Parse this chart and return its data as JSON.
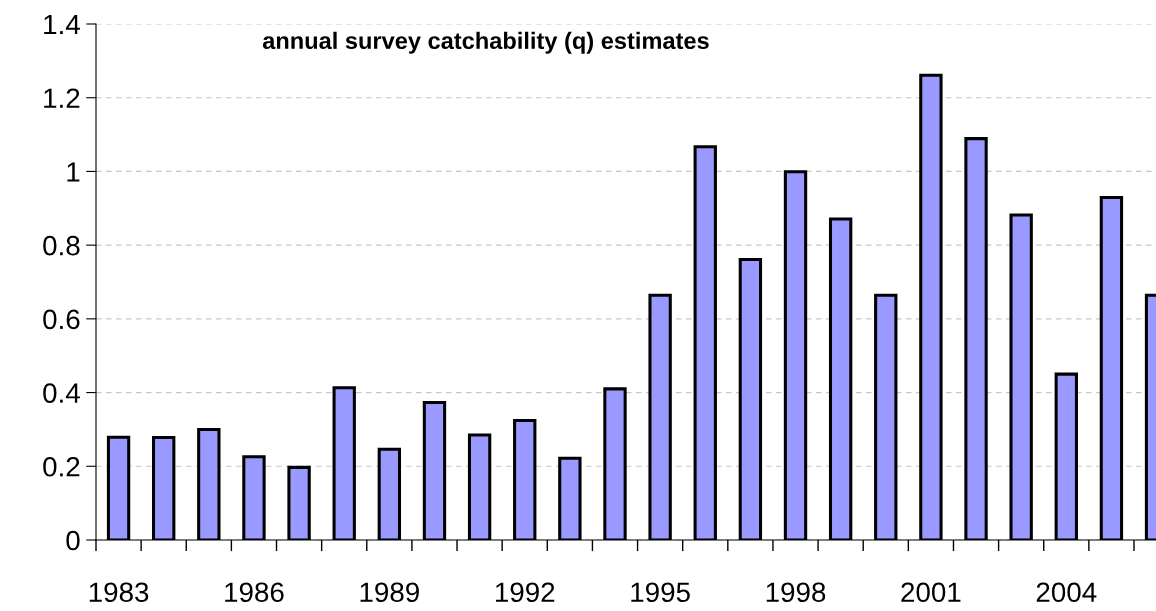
{
  "chart_data": {
    "type": "bar",
    "title": "annual survey catchability (q) estimates",
    "categories": [
      "1983",
      null,
      null,
      "1986",
      null,
      null,
      "1989",
      null,
      null,
      "1992",
      null,
      null,
      "1995",
      null,
      null,
      "1998",
      null,
      null,
      "2001",
      null,
      null,
      "2004",
      null,
      null
    ],
    "values": [
      0.279,
      0.278,
      0.3,
      0.226,
      0.197,
      0.413,
      0.246,
      0.373,
      0.285,
      0.324,
      0.222,
      0.41,
      0.664,
      1.067,
      0.761,
      0.999,
      0.871,
      0.664,
      1.261,
      1.089,
      0.882,
      0.45,
      0.929,
      0.664
    ],
    "color": "#9999ff",
    "ylim": [
      0,
      1.4
    ],
    "yticks": [
      0,
      {
        "value": 0.2,
        "label": "0.2"
      },
      {
        "value": 0.4,
        "label": "0.4"
      },
      {
        "value": 0.6,
        "label": "0.6"
      },
      {
        "value": 0.8,
        "label": "0.8"
      },
      1,
      {
        "value": 1.2,
        "label": "1.2"
      },
      {
        "value": 1.4,
        "label": "1.4"
      }
    ],
    "grid": "y",
    "legend": false
  }
}
